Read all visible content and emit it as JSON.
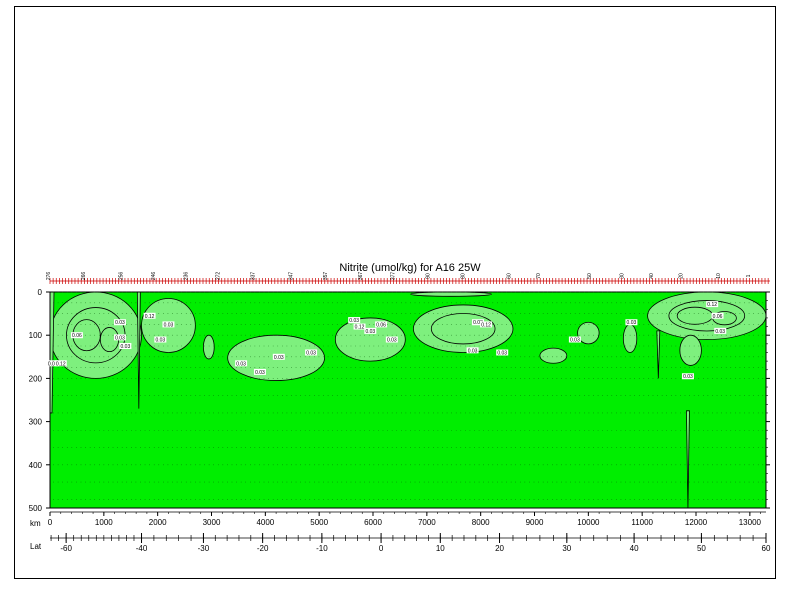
{
  "chart_data": {
    "type": "heatmap",
    "title": "Nitrite (umol/kg) for A16 25W",
    "xlabel": "km",
    "ylabel": "",
    "lat_label": "Lat",
    "xlim": [
      0,
      13300
    ],
    "ylim": [
      500,
      0
    ],
    "x_ticks": [
      0,
      1000,
      2000,
      3000,
      4000,
      5000,
      6000,
      7000,
      8000,
      9000,
      10000,
      11000,
      12000,
      13000
    ],
    "y_ticks": [
      0,
      100,
      200,
      300,
      400,
      500
    ],
    "lat_ticks": [
      {
        "value": -60,
        "km": 300
      },
      {
        "value": -40,
        "km": 1700
      },
      {
        "value": -30,
        "km": 2850
      },
      {
        "value": -20,
        "km": 3950
      },
      {
        "value": -10,
        "km": 5050
      },
      {
        "value": 0,
        "km": 6150
      },
      {
        "value": 10,
        "km": 7250
      },
      {
        "value": 20,
        "km": 8350
      },
      {
        "value": 30,
        "km": 9600
      },
      {
        "value": 40,
        "km": 10850
      },
      {
        "value": 50,
        "km": 12100
      },
      {
        "value": 60,
        "km": 13300
      }
    ],
    "station_labels": [
      {
        "label": "276",
        "km": 0
      },
      {
        "label": "266",
        "km": 650
      },
      {
        "label": "256",
        "km": 1350
      },
      {
        "label": "246",
        "km": 1950
      },
      {
        "label": "236",
        "km": 2550
      },
      {
        "label": "272",
        "km": 3150
      },
      {
        "label": "337",
        "km": 3800
      },
      {
        "label": "347",
        "km": 4500
      },
      {
        "label": "357",
        "km": 5150
      },
      {
        "label": "367",
        "km": 5800
      },
      {
        "label": "377",
        "km": 6400
      },
      {
        "label": "90",
        "km": 7050
      },
      {
        "label": "80",
        "km": 7700
      },
      {
        "label": "60",
        "km": 8550
      },
      {
        "label": "70",
        "km": 9100
      },
      {
        "label": "50",
        "km": 10050
      },
      {
        "label": "30",
        "km": 10650
      },
      {
        "label": "40",
        "km": 11200
      },
      {
        "label": "20",
        "km": 11750
      },
      {
        "label": "10",
        "km": 12450
      },
      {
        "label": "1",
        "km": 13000
      }
    ],
    "contour_levels": [
      0.03,
      0.06,
      0.12
    ],
    "colors": {
      "background": "#00ee00",
      "high": "#7ef07e",
      "contour": "#000000",
      "frame": "#000000"
    },
    "regions": [
      {
        "km": [
          0,
          1700
        ],
        "depth": [
          0,
          200
        ],
        "level": 0.12
      },
      {
        "km": [
          1700,
          2700
        ],
        "depth": [
          15,
          140
        ],
        "level": 0.03
      },
      {
        "km": [
          2850,
          3050
        ],
        "depth": [
          100,
          155
        ],
        "level": 0.03
      },
      {
        "km": [
          3300,
          5100
        ],
        "depth": [
          100,
          205
        ],
        "level": 0.03
      },
      {
        "km": [
          5300,
          6600
        ],
        "depth": [
          60,
          160
        ],
        "level": 0.03
      },
      {
        "km": [
          6700,
          8200
        ],
        "depth": [
          0,
          10
        ],
        "level": 0.03
      },
      {
        "km": [
          6750,
          8600
        ],
        "depth": [
          30,
          140
        ],
        "level": 0.06
      },
      {
        "km": [
          9100,
          9600
        ],
        "depth": [
          130,
          165
        ],
        "level": 0.03
      },
      {
        "km": [
          9800,
          10200
        ],
        "depth": [
          70,
          120
        ],
        "level": 0.03
      },
      {
        "km": [
          10650,
          10900
        ],
        "depth": [
          75,
          140
        ],
        "level": 0.03
      },
      {
        "km": [
          11100,
          13300
        ],
        "depth": [
          0,
          110
        ],
        "level": 0.12
      },
      {
        "km": [
          11700,
          12100
        ],
        "depth": [
          100,
          170
        ],
        "level": 0.03
      }
    ],
    "contour_labels": [
      {
        "text": "0.03",
        "km": 50,
        "depth": 165
      },
      {
        "text": "0.12",
        "km": 200,
        "depth": 165
      },
      {
        "text": "0.06",
        "km": 500,
        "depth": 100
      },
      {
        "text": "0.03",
        "km": 1300,
        "depth": 70
      },
      {
        "text": "0.03",
        "km": 1300,
        "depth": 105
      },
      {
        "text": "0.03",
        "km": 1400,
        "depth": 125
      },
      {
        "text": "0.12",
        "km": 1850,
        "depth": 55
      },
      {
        "text": "0.03",
        "km": 2050,
        "depth": 110
      },
      {
        "text": "0.03",
        "km": 2200,
        "depth": 75
      },
      {
        "text": "0.03",
        "km": 3550,
        "depth": 165
      },
      {
        "text": "0.03",
        "km": 3900,
        "depth": 185
      },
      {
        "text": "0.03",
        "km": 4250,
        "depth": 150
      },
      {
        "text": "0.03",
        "km": 4850,
        "depth": 140
      },
      {
        "text": "0.03",
        "km": 5650,
        "depth": 65
      },
      {
        "text": "0.12",
        "km": 5750,
        "depth": 80
      },
      {
        "text": "0.03",
        "km": 5950,
        "depth": 90
      },
      {
        "text": "0.06",
        "km": 6150,
        "depth": 75
      },
      {
        "text": "0.03",
        "km": 6350,
        "depth": 110
      },
      {
        "text": "0.03",
        "km": 7850,
        "depth": 135
      },
      {
        "text": "0.03",
        "km": 7950,
        "depth": 70
      },
      {
        "text": "0.12",
        "km": 8100,
        "depth": 75
      },
      {
        "text": "0.03",
        "km": 8400,
        "depth": 140
      },
      {
        "text": "0.03",
        "km": 9750,
        "depth": 110
      },
      {
        "text": "0.03",
        "km": 10800,
        "depth": 70
      },
      {
        "text": "0.03",
        "km": 11850,
        "depth": 195
      },
      {
        "text": "0.12",
        "km": 12300,
        "depth": 28
      },
      {
        "text": "0.06",
        "km": 12400,
        "depth": 55
      },
      {
        "text": "0.03",
        "km": 12450,
        "depth": 90
      }
    ],
    "spikes": [
      {
        "km": 1650,
        "from": 0,
        "to": 270
      },
      {
        "km": 11300,
        "from": 90,
        "to": 200
      },
      {
        "km": 11850,
        "from": 275,
        "to": 500
      }
    ],
    "grid": false
  }
}
